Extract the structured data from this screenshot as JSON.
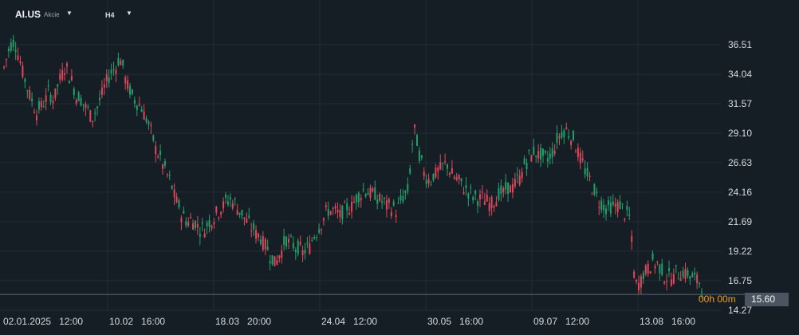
{
  "header": {
    "symbol": "AI.US",
    "instrument_type": "Akcie",
    "timeframe": "H4",
    "dropdown_icon": "caret-down-icon"
  },
  "last_price": {
    "label": "15.60",
    "countdown": "00h 00m",
    "color": "#4a5561"
  },
  "colors": {
    "background": "#161e25",
    "grid": "#222c35",
    "up": "#22a06b",
    "down": "#e0485a",
    "countdown": "#f0a020"
  },
  "chart_data": {
    "type": "candlestick",
    "y_ticks": [
      "36.51",
      "34.04",
      "31.57",
      "29.10",
      "26.63",
      "24.16",
      "21.69",
      "19.22",
      "16.75",
      "14.27"
    ],
    "ylim": [
      14.27,
      37.5
    ],
    "x_ticks": [
      {
        "date": "02.01.2025",
        "time": "12:00"
      },
      {
        "date": "10.02",
        "time": "16:00"
      },
      {
        "date": "18.03",
        "time": "20:00"
      },
      {
        "date": "24.04",
        "time": "12:00"
      },
      {
        "date": "30.05",
        "time": "16:00"
      },
      {
        "date": "09.07",
        "time": "12:00"
      },
      {
        "date": "13.08",
        "time": "16:00"
      }
    ],
    "grid": true,
    "last_price_line": 15.6,
    "approx_close_path": [
      34.6,
      36.3,
      36.8,
      35.0,
      33.2,
      31.9,
      30.8,
      31.6,
      32.4,
      32.0,
      33.5,
      34.8,
      33.8,
      32.3,
      31.8,
      31.1,
      30.5,
      31.4,
      32.8,
      33.9,
      34.6,
      35.4,
      33.6,
      32.2,
      31.7,
      31.2,
      29.9,
      28.4,
      27.2,
      26.1,
      25.0,
      23.6,
      22.4,
      21.7,
      21.9,
      21.3,
      21.0,
      21.6,
      22.2,
      22.8,
      23.3,
      23.6,
      23.0,
      22.3,
      21.6,
      21.0,
      20.6,
      20.0,
      19.0,
      18.2,
      19.3,
      20.1,
      19.7,
      19.4,
      19.1,
      19.5,
      20.6,
      21.4,
      22.3,
      22.7,
      22.4,
      22.2,
      22.8,
      23.2,
      23.8,
      24.4,
      24.2,
      23.8,
      23.5,
      23.1,
      22.9,
      22.6,
      23.7,
      24.2,
      29.6,
      27.2,
      25.6,
      25.2,
      25.8,
      26.2,
      26.5,
      25.6,
      25.1,
      24.6,
      24.1,
      23.7,
      23.6,
      23.5,
      23.3,
      23.8,
      24.0,
      24.4,
      24.7,
      25.3,
      26.4,
      27.2,
      27.6,
      27.1,
      26.9,
      27.4,
      28.6,
      29.4,
      29.2,
      28.4,
      27.2,
      25.8,
      24.9,
      23.8,
      23.1,
      22.7,
      22.9,
      23.2,
      22.5,
      22.0,
      16.2,
      16.9,
      17.7,
      18.3,
      18.1,
      17.3,
      17.0,
      17.2,
      17.5,
      17.4,
      17.1,
      16.8,
      16.6
    ]
  }
}
